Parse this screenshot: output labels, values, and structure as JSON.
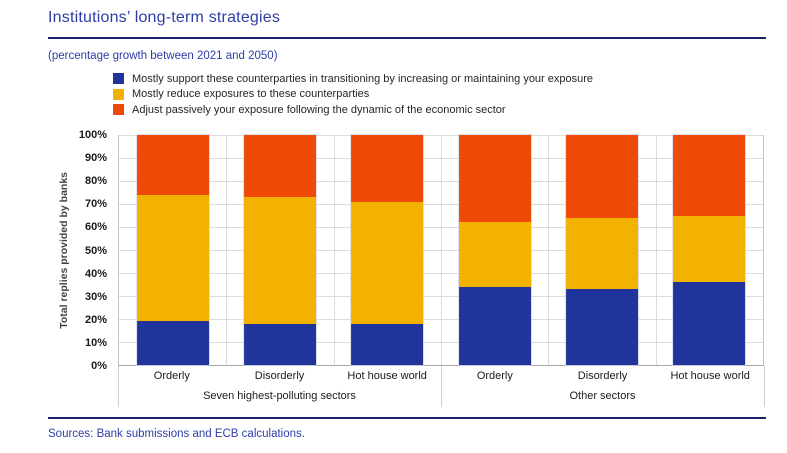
{
  "header": {
    "title": "Institutions’ long-term strategies",
    "subtitle": "(percentage growth between 2021 and 2050)"
  },
  "chart_data": {
    "type": "bar",
    "stacked": true,
    "ylabel": "Total replies provided by banks",
    "ylim": [
      0,
      100
    ],
    "ytick_step": 10,
    "ytick_suffix": "%",
    "grid": true,
    "legend_position": "top",
    "groups": [
      {
        "label": "Seven highest-polluting sectors",
        "categories": [
          "Orderly",
          "Disorderly",
          "Hot house world"
        ]
      },
      {
        "label": "Other sectors",
        "categories": [
          "Orderly",
          "Disorderly",
          "Hot house world"
        ]
      }
    ],
    "series": [
      {
        "name": "Mostly support these counterparties in transitioning by increasing or maintaining your exposure",
        "color": "#21349c",
        "values": [
          19,
          18,
          18,
          34,
          33,
          36
        ]
      },
      {
        "name": "Mostly reduce exposures to these counterparties",
        "color": "#f3b200",
        "values": [
          55,
          55,
          53,
          28,
          31,
          29
        ]
      },
      {
        "name": "Adjust passively your exposure following the dynamic of the economic sector",
        "color": "#ee4a05",
        "values": [
          26,
          27,
          29,
          38,
          36,
          35
        ]
      }
    ]
  },
  "footer": {
    "source": "Sources: Bank submissions and ECB calculations."
  },
  "colors": {
    "accent_blue": "#2e3da6",
    "rule_navy": "#1b2168",
    "gridline": "#dcdcdc"
  }
}
